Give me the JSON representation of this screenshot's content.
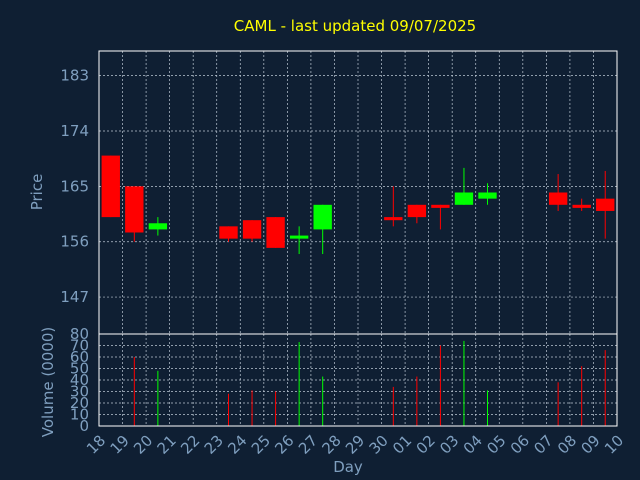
{
  "chart_data": {
    "type": "candlestick",
    "title": "CAML - last updated 09/07/2025",
    "colors": {
      "background": "#0f1f33",
      "title": "#ffff00",
      "axis_text": "#7f9fbf",
      "up": "#00ff00",
      "down": "#ff0000",
      "grid": "#bcc8d4"
    },
    "price_panel": {
      "ylabel": "Price",
      "ylim": [
        141,
        187
      ],
      "yticks": [
        147,
        156,
        165,
        174,
        183
      ],
      "grid": true
    },
    "volume_panel": {
      "ylabel": "Volume (0000)",
      "ylim": [
        0,
        80
      ],
      "yticks": [
        0,
        10,
        20,
        30,
        40,
        50,
        60,
        70,
        80
      ],
      "grid": true
    },
    "xlabel": "Day",
    "x_ticks": [
      "18",
      "19",
      "20",
      "21",
      "22",
      "23",
      "24",
      "25",
      "26",
      "27",
      "28",
      "29",
      "30",
      "01",
      "02",
      "03",
      "04",
      "05",
      "06",
      "07",
      "08",
      "09",
      "10"
    ],
    "candles": [
      {
        "i": 0,
        "open": 170,
        "high": 170,
        "low": 160,
        "close": 160,
        "direction": "down",
        "volume": 0
      },
      {
        "i": 1,
        "open": 165,
        "high": 165,
        "low": 156,
        "close": 157.5,
        "direction": "down",
        "volume": 60
      },
      {
        "i": 2,
        "open": 158,
        "high": 160,
        "low": 157,
        "close": 159,
        "direction": "up",
        "volume": 48
      },
      {
        "i": 5,
        "open": 158.5,
        "high": 158.5,
        "low": 156,
        "close": 156.5,
        "direction": "down",
        "volume": 28
      },
      {
        "i": 6,
        "open": 159.5,
        "high": 159.5,
        "low": 156,
        "close": 156.5,
        "direction": "down",
        "volume": 31
      },
      {
        "i": 7,
        "open": 160,
        "high": 160,
        "low": 155,
        "close": 155,
        "direction": "down",
        "volume": 30
      },
      {
        "i": 8,
        "open": 156.5,
        "high": 158.5,
        "low": 154,
        "close": 157,
        "direction": "up",
        "volume": 73
      },
      {
        "i": 9,
        "open": 158,
        "high": 162,
        "low": 154,
        "close": 162,
        "direction": "up",
        "volume": 43
      },
      {
        "i": 12,
        "open": 160,
        "high": 165,
        "low": 158.5,
        "close": 159.5,
        "direction": "down",
        "volume": 34
      },
      {
        "i": 13,
        "open": 162,
        "high": 162,
        "low": 159,
        "close": 160,
        "direction": "down",
        "volume": 43
      },
      {
        "i": 14,
        "open": 162,
        "high": 162,
        "low": 158,
        "close": 161.5,
        "direction": "down",
        "volume": 70
      },
      {
        "i": 15,
        "open": 162,
        "high": 168,
        "low": 162,
        "close": 164,
        "direction": "up",
        "volume": 74
      },
      {
        "i": 16,
        "open": 163,
        "high": 165.5,
        "low": 162,
        "close": 164,
        "direction": "up",
        "volume": 31
      },
      {
        "i": 19,
        "open": 164,
        "high": 167,
        "low": 161,
        "close": 162,
        "direction": "down",
        "volume": 38
      },
      {
        "i": 20,
        "open": 162,
        "high": 163,
        "low": 161,
        "close": 161.5,
        "direction": "down",
        "volume": 52
      },
      {
        "i": 21,
        "open": 163,
        "high": 167.5,
        "low": 156.5,
        "close": 161,
        "direction": "down",
        "volume": 66
      }
    ]
  }
}
